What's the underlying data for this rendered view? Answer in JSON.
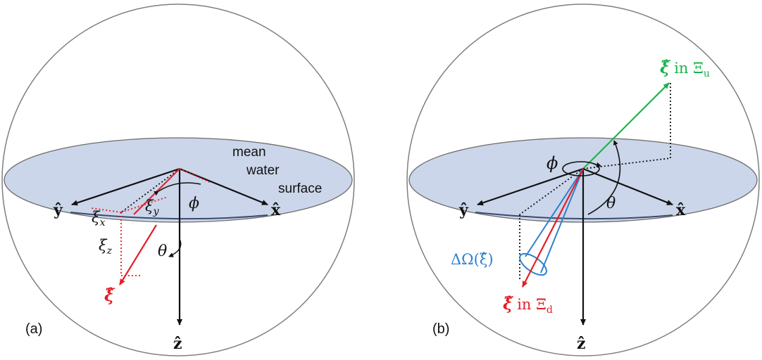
{
  "colors": {
    "sphere": "#7f7f7f",
    "surface_fill": "#cbd6ea",
    "surface_stroke": "#6b6b6b",
    "axis": "#111111",
    "red": "#e41e26",
    "green": "#1bb34a",
    "blue": "#2f7fd0"
  },
  "panel_a": {
    "label": "(a)",
    "surface_label": [
      "mean",
      "water",
      "surface"
    ],
    "axis_y": "ŷ",
    "axis_x": "x̂",
    "axis_z": "ẑ",
    "xi_x": "ξ",
    "xi_x_sub": "x",
    "xi_y": "ξ",
    "xi_y_sub": "y",
    "xi_z": "ξ",
    "xi_z_sub": "z",
    "phi": "ϕ",
    "theta": "θ",
    "xi_hat": "ξ̂"
  },
  "panel_b": {
    "label": "(b)",
    "axis_y": "ŷ",
    "axis_x": "x̂",
    "axis_z": "ẑ",
    "phi": "ϕ",
    "theta": "θ",
    "xi_up": "ξ̂",
    "xi_up_in": "in Ξ",
    "xi_up_sub": "u",
    "xi_down": "ξ̂",
    "xi_down_in": "in Ξ",
    "xi_down_sub": "d",
    "solid_angle": "ΔΩ(ξ̂)"
  }
}
